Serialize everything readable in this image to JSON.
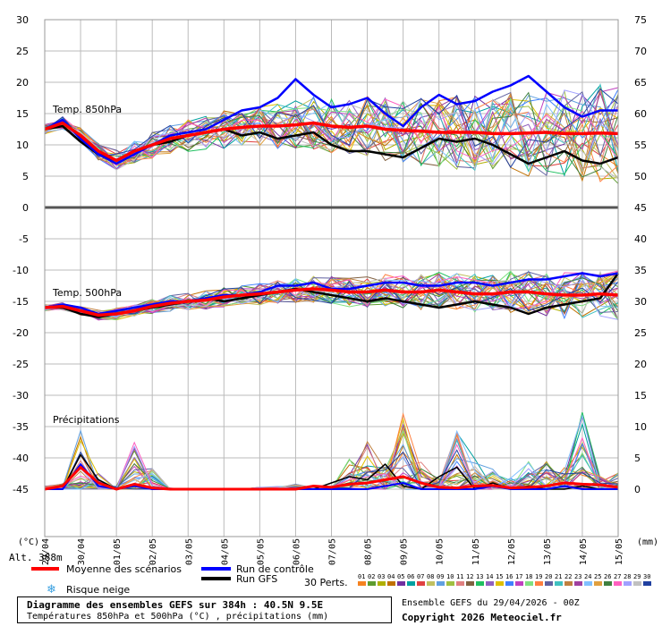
{
  "chart_data": {
    "type": "line",
    "title": "Diagramme des ensembles GEFS sur 384h : 40.5N 9.5E",
    "subtitle": "Températures 850hPa et 500hPa (°C) , précipitations (mm)",
    "x_tick_labels": [
      "29/04",
      "30/04",
      "01/05",
      "02/05",
      "03/05",
      "04/05",
      "05/05",
      "06/05",
      "07/05",
      "08/05",
      "09/05",
      "10/05",
      "11/05",
      "12/05",
      "13/05",
      "14/05",
      "15/05"
    ],
    "left_axis": {
      "label": "(°C)",
      "ticks": [
        "30",
        "25",
        "20",
        "15",
        "10",
        "5",
        "0",
        "-5",
        "-10",
        "-15",
        "-20",
        "-25",
        "-30",
        "-35",
        "-40",
        "-45"
      ]
    },
    "right_axis": {
      "label": "(mm)",
      "ticks": [
        "75",
        "70",
        "65",
        "60",
        "55",
        "50",
        "45",
        "40",
        "35",
        "30",
        "25",
        "20",
        "15",
        "10",
        "5",
        "0"
      ]
    },
    "panel_labels": {
      "t850": "Temp. 850hPa",
      "t500": "Temp. 500hPa",
      "precip": "Précipitations"
    },
    "altitude": "Alt. 388m",
    "x_days": [
      0,
      0.5,
      1,
      1.5,
      2,
      2.5,
      3,
      3.5,
      4,
      4.5,
      5,
      5.5,
      6,
      6.5,
      7,
      7.5,
      8,
      8.5,
      9,
      9.5,
      10,
      10.5,
      11,
      11.5,
      12,
      12.5,
      13,
      13.5,
      14,
      14.5,
      15,
      15.5,
      16
    ],
    "temp850": {
      "mean": [
        12.5,
        13.5,
        11.5,
        9.0,
        7.5,
        9.0,
        10.0,
        11.0,
        11.5,
        12.0,
        12.5,
        12.8,
        13.0,
        13.0,
        13.2,
        13.5,
        13.0,
        12.8,
        13.0,
        12.5,
        12.3,
        12.2,
        12.0,
        12.0,
        12.0,
        11.8,
        11.8,
        11.9,
        12.0,
        11.8,
        11.8,
        11.9,
        11.8
      ],
      "control": [
        12.5,
        14.0,
        11.0,
        8.5,
        7.0,
        8.5,
        10.0,
        11.5,
        12.0,
        12.5,
        14.0,
        15.5,
        16.0,
        17.5,
        20.5,
        18.0,
        16.0,
        16.5,
        17.5,
        15.0,
        13.0,
        16.0,
        18.0,
        16.5,
        17.0,
        18.5,
        19.5,
        21.0,
        18.5,
        16.0,
        14.5,
        15.5,
        15.5
      ],
      "gfs": [
        12.5,
        13.0,
        10.5,
        8.5,
        7.5,
        9.0,
        10.0,
        10.5,
        11.5,
        12.0,
        12.5,
        11.5,
        12.0,
        11.0,
        11.5,
        12.0,
        10.0,
        9.0,
        9.0,
        8.5,
        8.0,
        9.5,
        11.0,
        10.5,
        11.0,
        10.0,
        8.5,
        7.0,
        8.0,
        9.0,
        7.5,
        7.0,
        8.0
      ]
    },
    "temp500": {
      "mean": [
        -16.0,
        -15.8,
        -16.5,
        -17.2,
        -17.0,
        -16.5,
        -15.8,
        -15.3,
        -15.0,
        -14.8,
        -14.3,
        -14.0,
        -13.8,
        -13.5,
        -13.2,
        -13.0,
        -13.2,
        -13.5,
        -13.5,
        -13.2,
        -13.5,
        -13.5,
        -13.2,
        -13.5,
        -13.8,
        -13.8,
        -13.5,
        -13.5,
        -13.8,
        -14.0,
        -14.0,
        -13.8,
        -14.0
      ],
      "control": [
        -16.0,
        -15.5,
        -16.0,
        -17.0,
        -16.5,
        -16.0,
        -15.5,
        -15.0,
        -15.0,
        -14.5,
        -14.0,
        -14.0,
        -13.5,
        -12.5,
        -12.5,
        -12.0,
        -13.0,
        -13.0,
        -12.5,
        -12.0,
        -12.0,
        -12.5,
        -12.5,
        -12.0,
        -12.0,
        -12.5,
        -12.0,
        -11.5,
        -11.5,
        -11.0,
        -10.5,
        -11.0,
        -10.5
      ],
      "gfs": [
        -16.0,
        -16.0,
        -17.0,
        -17.5,
        -17.0,
        -16.5,
        -16.0,
        -15.5,
        -15.0,
        -14.5,
        -15.0,
        -14.5,
        -14.0,
        -13.5,
        -13.0,
        -13.5,
        -14.0,
        -14.5,
        -15.0,
        -14.5,
        -15.0,
        -15.5,
        -16.0,
        -15.5,
        -15.0,
        -15.5,
        -16.0,
        -17.0,
        -16.0,
        -15.5,
        -15.0,
        -14.5,
        -10.5
      ]
    },
    "precip": {
      "mean": [
        0.0,
        0.5,
        3.5,
        1.0,
        0.0,
        0.8,
        0.2,
        0.0,
        0.0,
        0.0,
        0.0,
        0.0,
        0.0,
        0.0,
        0.0,
        0.5,
        0.3,
        0.8,
        1.0,
        1.5,
        2.0,
        1.0,
        0.3,
        0.2,
        0.5,
        0.6,
        0.2,
        0.3,
        0.5,
        1.0,
        0.8,
        0.7,
        0.3
      ],
      "control": [
        0.0,
        0.0,
        4.0,
        0.5,
        0.0,
        0.5,
        0.0,
        0.0,
        0.0,
        0.0,
        0.0,
        0.0,
        0.0,
        0.0,
        0.0,
        0.0,
        0.0,
        0.0,
        0.0,
        0.5,
        1.0,
        0.0,
        0.0,
        0.0,
        0.0,
        0.5,
        0.0,
        0.0,
        0.0,
        0.5,
        0.0,
        0.0,
        0.0
      ],
      "gfs": [
        0.0,
        0.0,
        5.5,
        1.5,
        0.0,
        0.5,
        0.0,
        0.0,
        0.0,
        0.0,
        0.0,
        0.0,
        0.0,
        0.0,
        0.0,
        0.0,
        1.0,
        2.0,
        1.5,
        4.0,
        0.5,
        0.0,
        2.0,
        3.5,
        0.0,
        1.0,
        0.0,
        0.5,
        0.0,
        0.0,
        0.5,
        0.0,
        0.0
      ],
      "max": [
        0.5,
        1.0,
        9.5,
        2.5,
        0.5,
        8.0,
        3.5,
        0.2,
        0.0,
        0.0,
        0.0,
        0.0,
        0.3,
        0.5,
        0.8,
        0.3,
        0.5,
        5.0,
        8.0,
        3.5,
        13.5,
        5.0,
        2.0,
        9.5,
        5.0,
        3.5,
        2.0,
        4.5,
        6.0,
        3.5,
        12.5,
        2.0,
        3.0
      ]
    },
    "legend": {
      "mean": "Moyenne des scénarios",
      "control": "Run de contrôle",
      "gfs": "Run GFS",
      "snow": "Risque neige",
      "members_label": "30 Perts.",
      "members": [
        "01",
        "02",
        "03",
        "04",
        "05",
        "06",
        "07",
        "08",
        "09",
        "10",
        "11",
        "12",
        "13",
        "14",
        "15",
        "16",
        "17",
        "18",
        "19",
        "20",
        "21",
        "22",
        "23",
        "24",
        "25",
        "26",
        "27",
        "28",
        "29",
        "30"
      ],
      "member_colors": [
        "#f58220",
        "#5d9c2f",
        "#b0b000",
        "#c07000",
        "#7030a0",
        "#00a0a0",
        "#e04040",
        "#c0c060",
        "#60a0e0",
        "#a0c040",
        "#e08080",
        "#806040",
        "#20c060",
        "#9060c0",
        "#e0c000",
        "#4080ff",
        "#c040c0",
        "#80e080",
        "#ff8040",
        "#6060a0",
        "#40c0c0",
        "#c08040",
        "#a040a0",
        "#80c0ff",
        "#e0a040",
        "#408040",
        "#ff60c0",
        "#a0a0ff",
        "#c0c0c0",
        "#2040a0"
      ]
    },
    "colors": {
      "mean": "#ff0000",
      "control": "#0000ff",
      "gfs": "#000000",
      "grid": "#bbbbbb"
    }
  },
  "footer": {
    "title": "Diagramme des ensembles GEFS sur 384h : 40.5N 9.5E",
    "subtitle": "Températures 850hPa et 500hPa (°C) , précipitations (mm)",
    "run": "Ensemble GEFS du 29/04/2026 - 00Z",
    "copyright": "Copyright 2026 Meteociel.fr"
  }
}
